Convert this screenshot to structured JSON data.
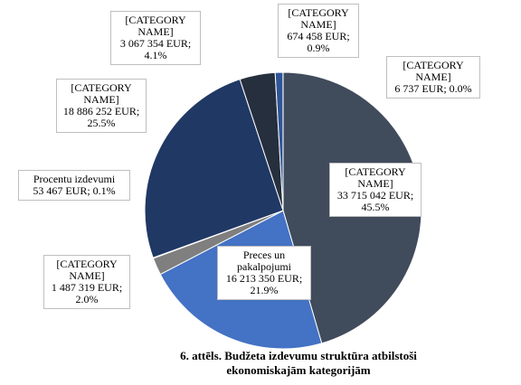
{
  "chart_data": {
    "type": "pie",
    "title": "6. attēls. Budžeta izdevumu struktūra atbilstoši ekonomiskajām kategorijām",
    "categories": [
      "[CATEGORY NAME]",
      "Preces un pakalpojumi",
      "[CATEGORY NAME]",
      "Procentu izdevumi",
      "[CATEGORY NAME]",
      "[CATEGORY NAME]",
      "[CATEGORY NAME]",
      "[CATEGORY NAME]"
    ],
    "values": [
      33715042,
      16213350,
      1487319,
      53467,
      18886252,
      3067354,
      674458,
      6737
    ],
    "value_labels": [
      "33  715 042 EUR; 45.5%",
      "16 213 350 EUR; 21.9%",
      "1 487 319 EUR; 2.0%",
      "53 467 EUR;  0.1%",
      "18 886 252 EUR; 25.5%",
      "3 067 354 EUR; 4.1%",
      "674 458 EUR; 0.9%",
      "6 737 EUR;  0.0%"
    ],
    "colors": [
      "#404b5c",
      "#4472c4",
      "#7f7f7f",
      "#9aa6b8",
      "#203864",
      "#262f3d",
      "#2f5597",
      "#5b7fc0"
    ]
  }
}
